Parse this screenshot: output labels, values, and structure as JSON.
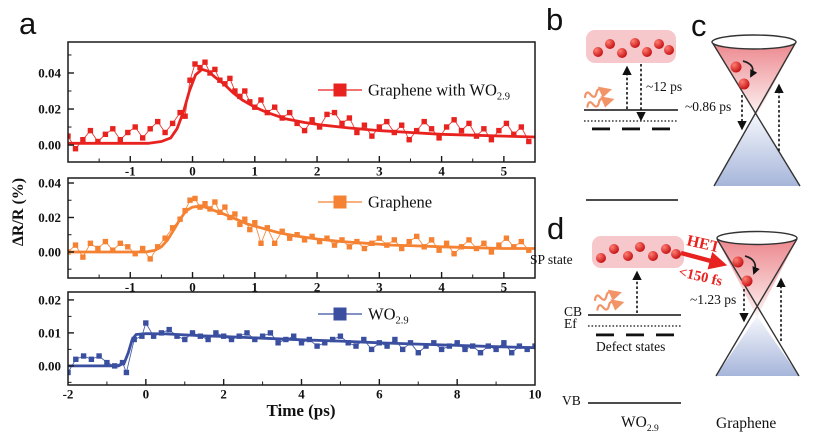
{
  "ui": {
    "panel_a": "a",
    "panel_b": "b",
    "panel_c": "c",
    "panel_d": "d",
    "xlabel": "Time (ps)",
    "ylabel": "ΔR/R (%)",
    "b": {
      "time": "~12 ps"
    },
    "c": {
      "time": "~0.86 ps"
    },
    "d": {
      "sp": "SP state",
      "cb": "CB",
      "ef": "Ef",
      "defect": "Defect states",
      "vb": "VB",
      "wo_main": "WO",
      "wo_sub": "2.9",
      "graphene": "Graphene",
      "het": "HET",
      "het_time": "<150 fs",
      "time": "~1.23 ps"
    }
  },
  "colors": {
    "red_series": "#e8231f",
    "orange_series": "#f58233",
    "blue_series": "#3a4fa0",
    "pink_box": "#f6c8cb",
    "dot_light": "#ff7d72",
    "dot_dark": "#c40f12",
    "cone_red_top": "#ec878d",
    "cone_red_bottom": "#fdf3f3",
    "cone_blue_top": "#f5f7fc",
    "cone_blue_bottom": "#a6b5da",
    "photon": "#f29368",
    "het_red": "#e8231f"
  },
  "chart_data": {
    "type": "scatter",
    "title": "",
    "xlabel": "Time (ps)",
    "ylabel": "ΔR/R (%)",
    "panels": [
      {
        "legend_main": "Graphene with WO",
        "legend_sub": "2.9",
        "color": "#e8231f",
        "xlim": [
          -2,
          5.5
        ],
        "xticks": [
          -1,
          0,
          1,
          2,
          3,
          4,
          5
        ],
        "xminor": 0.5,
        "ylim": [
          -0.0094,
          0.0572
        ],
        "yticks": [
          0,
          0.02,
          0.04
        ],
        "yminor": 0.01,
        "fit": [
          [
            -2,
            0.001
          ],
          [
            -1.5,
            0.001
          ],
          [
            -1.0,
            0.001
          ],
          [
            -0.7,
            0.001
          ],
          [
            -0.5,
            0.002
          ],
          [
            -0.35,
            0.004
          ],
          [
            -0.25,
            0.009
          ],
          [
            -0.15,
            0.018
          ],
          [
            -0.05,
            0.03
          ],
          [
            0.05,
            0.039
          ],
          [
            0.15,
            0.042
          ],
          [
            0.25,
            0.041
          ],
          [
            0.35,
            0.038
          ],
          [
            0.5,
            0.034
          ],
          [
            0.65,
            0.029
          ],
          [
            0.8,
            0.025
          ],
          [
            1.0,
            0.021
          ],
          [
            1.2,
            0.018
          ],
          [
            1.5,
            0.0145
          ],
          [
            1.8,
            0.0125
          ],
          [
            2.1,
            0.011
          ],
          [
            2.5,
            0.0095
          ],
          [
            3.0,
            0.008
          ],
          [
            3.5,
            0.007
          ],
          [
            4.0,
            0.006
          ],
          [
            4.5,
            0.0055
          ],
          [
            5.0,
            0.005
          ],
          [
            5.5,
            0.0045
          ]
        ],
        "scatter": [
          [
            -2,
            0.005
          ],
          [
            -1.88,
            -0.002
          ],
          [
            -1.76,
            0.003
          ],
          [
            -1.64,
            0.008
          ],
          [
            -1.52,
            0.002
          ],
          [
            -1.4,
            0.006
          ],
          [
            -1.28,
            0.009
          ],
          [
            -1.16,
            0.003
          ],
          [
            -1.04,
            0.007
          ],
          [
            -0.92,
            0.01
          ],
          [
            -0.8,
            0.004
          ],
          [
            -0.68,
            0.009
          ],
          [
            -0.56,
            0.013
          ],
          [
            -0.44,
            0.007
          ],
          [
            -0.32,
            0.012
          ],
          [
            -0.2,
            0.018
          ],
          [
            -0.12,
            0.016
          ],
          [
            -0.04,
            0.036
          ],
          [
            0.04,
            0.045
          ],
          [
            0.12,
            0.043
          ],
          [
            0.2,
            0.046
          ],
          [
            0.28,
            0.04
          ],
          [
            0.36,
            0.042
          ],
          [
            0.44,
            0.036
          ],
          [
            0.52,
            0.034
          ],
          [
            0.6,
            0.037
          ],
          [
            0.68,
            0.03
          ],
          [
            0.76,
            0.027
          ],
          [
            0.84,
            0.03
          ],
          [
            0.92,
            0.024
          ],
          [
            1,
            0.021
          ],
          [
            1.1,
            0.025
          ],
          [
            1.2,
            0.018
          ],
          [
            1.32,
            0.021
          ],
          [
            1.44,
            0.015
          ],
          [
            1.56,
            0.018
          ],
          [
            1.68,
            0.012
          ],
          [
            1.8,
            0.008
          ],
          [
            1.92,
            0.014
          ],
          [
            2.04,
            0.01
          ],
          [
            2.16,
            0.017
          ],
          [
            2.28,
            0.018
          ],
          [
            2.4,
            0.012
          ],
          [
            2.52,
            0.015
          ],
          [
            2.64,
            0.007
          ],
          [
            2.76,
            0.011
          ],
          [
            2.88,
            0.005
          ],
          [
            3,
            0.01
          ],
          [
            3.12,
            0.013
          ],
          [
            3.24,
            0.007
          ],
          [
            3.36,
            0.011
          ],
          [
            3.48,
            0.003
          ],
          [
            3.6,
            0.008
          ],
          [
            3.72,
            0.013
          ],
          [
            3.84,
            0.009
          ],
          [
            3.96,
            0.004
          ],
          [
            4.08,
            0.01
          ],
          [
            4.2,
            0.014
          ],
          [
            4.32,
            0.008
          ],
          [
            4.44,
            0.012
          ],
          [
            4.56,
            0.005
          ],
          [
            4.68,
            0.009
          ],
          [
            4.8,
            0.003
          ],
          [
            4.92,
            0.008
          ],
          [
            5.04,
            0.012
          ],
          [
            5.16,
            0.006
          ],
          [
            5.28,
            0.01
          ],
          [
            5.4,
            0.002
          ]
        ]
      },
      {
        "legend_main": "Graphene",
        "legend_sub": "",
        "color": "#f58233",
        "xlim": [
          -2,
          5.5
        ],
        "xticks": [
          -1,
          0,
          1,
          2,
          3,
          4,
          5
        ],
        "xminor": 0.5,
        "ylim": [
          -0.0151,
          0.0429
        ],
        "yticks": [
          0,
          0.02,
          0.04
        ],
        "yminor": 0.01,
        "fit": [
          [
            -2,
            0
          ],
          [
            -1.5,
            0
          ],
          [
            -1.0,
            0
          ],
          [
            -0.75,
            0
          ],
          [
            -0.6,
            0.001
          ],
          [
            -0.5,
            0.003
          ],
          [
            -0.4,
            0.007
          ],
          [
            -0.3,
            0.013
          ],
          [
            -0.2,
            0.019
          ],
          [
            -0.1,
            0.024
          ],
          [
            0,
            0.026
          ],
          [
            0.1,
            0.0265
          ],
          [
            0.2,
            0.026
          ],
          [
            0.35,
            0.024
          ],
          [
            0.5,
            0.022
          ],
          [
            0.7,
            0.019
          ],
          [
            0.9,
            0.016
          ],
          [
            1.1,
            0.014
          ],
          [
            1.4,
            0.011
          ],
          [
            1.7,
            0.009
          ],
          [
            2.0,
            0.0075
          ],
          [
            2.4,
            0.006
          ],
          [
            2.8,
            0.005
          ],
          [
            3.2,
            0.004
          ],
          [
            3.6,
            0.0035
          ],
          [
            4.0,
            0.003
          ],
          [
            4.5,
            0.0025
          ],
          [
            5.0,
            0.002
          ],
          [
            5.5,
            0.002
          ]
        ],
        "scatter": [
          [
            -2,
            0
          ],
          [
            -1.88,
            0.004
          ],
          [
            -1.76,
            -0.003
          ],
          [
            -1.64,
            0.005
          ],
          [
            -1.52,
            0.002
          ],
          [
            -1.4,
            0.006
          ],
          [
            -1.28,
            0.001
          ],
          [
            -1.16,
            0.005
          ],
          [
            -1.04,
            0.003
          ],
          [
            -0.92,
            -0.001
          ],
          [
            -0.8,
            0.002
          ],
          [
            -0.68,
            -0.004
          ],
          [
            -0.56,
            0.003
          ],
          [
            -0.44,
            0.008
          ],
          [
            -0.32,
            0.014
          ],
          [
            -0.2,
            0.019
          ],
          [
            -0.12,
            0.024
          ],
          [
            -0.04,
            0.03
          ],
          [
            0.04,
            0.031
          ],
          [
            0.12,
            0.026
          ],
          [
            0.2,
            0.028
          ],
          [
            0.28,
            0.025
          ],
          [
            0.36,
            0.029
          ],
          [
            0.44,
            0.023
          ],
          [
            0.52,
            0.026
          ],
          [
            0.6,
            0.02
          ],
          [
            0.68,
            0.022
          ],
          [
            0.76,
            0.016
          ],
          [
            0.84,
            0.019
          ],
          [
            0.92,
            0.013
          ],
          [
            1,
            0.017
          ],
          [
            1.1,
            0.005
          ],
          [
            1.2,
            0.014
          ],
          [
            1.32,
            0.005
          ],
          [
            1.44,
            0.012
          ],
          [
            1.56,
            0.008
          ],
          [
            1.68,
            0.01
          ],
          [
            1.8,
            0.007
          ],
          [
            1.92,
            0.009
          ],
          [
            2.04,
            0.006
          ],
          [
            2.16,
            0.008
          ],
          [
            2.28,
            0.004
          ],
          [
            2.4,
            0.007
          ],
          [
            2.52,
            0.003
          ],
          [
            2.64,
            0.006
          ],
          [
            2.76,
            0.002
          ],
          [
            2.88,
            0.005
          ],
          [
            3,
            0.008
          ],
          [
            3.12,
            0.004
          ],
          [
            3.24,
            0.007
          ],
          [
            3.36,
            0.002
          ],
          [
            3.48,
            0.006
          ],
          [
            3.6,
            0.009
          ],
          [
            3.72,
            0.003
          ],
          [
            3.84,
            0.007
          ],
          [
            3.96,
            0.001
          ],
          [
            4.08,
            0.005
          ],
          [
            4.2,
            -0.001
          ],
          [
            4.32,
            0.003
          ],
          [
            4.44,
            0.007
          ],
          [
            4.56,
            0.002
          ],
          [
            4.68,
            0.005
          ],
          [
            4.8,
            0
          ],
          [
            4.92,
            0.004
          ],
          [
            5.04,
            0.008
          ],
          [
            5.16,
            0.003
          ],
          [
            5.28,
            0.006
          ],
          [
            5.4,
            0.001
          ]
        ]
      },
      {
        "legend_main": "WO",
        "legend_sub": "2.9",
        "color": "#3a4fa0",
        "xlim": [
          -2,
          10
        ],
        "xticks": [
          -2,
          0,
          2,
          4,
          6,
          8,
          10
        ],
        "xminor": 1,
        "ylim": [
          -0.0058,
          0.0224
        ],
        "yticks": [
          0,
          0.01,
          0.02
        ],
        "yminor": 0.005,
        "fit": [
          [
            -2,
            0
          ],
          [
            -1.0,
            0
          ],
          [
            -0.7,
            0
          ],
          [
            -0.55,
            0.001
          ],
          [
            -0.45,
            0.004
          ],
          [
            -0.35,
            0.008
          ],
          [
            -0.25,
            0.0095
          ],
          [
            0,
            0.0098
          ],
          [
            0.5,
            0.0097
          ],
          [
            1,
            0.0094
          ],
          [
            1.5,
            0.0091
          ],
          [
            2,
            0.0089
          ],
          [
            3,
            0.0084
          ],
          [
            4,
            0.0079
          ],
          [
            5,
            0.0075
          ],
          [
            6,
            0.007
          ],
          [
            7,
            0.0066
          ],
          [
            8,
            0.0062
          ],
          [
            9,
            0.0058
          ],
          [
            10,
            0.0055
          ]
        ],
        "scatter": [
          [
            -2,
            -0.002
          ],
          [
            -1.8,
            0.002
          ],
          [
            -1.6,
            0.003
          ],
          [
            -1.4,
            0.002
          ],
          [
            -1.2,
            0.003
          ],
          [
            -1,
            0.001
          ],
          [
            -0.8,
            0
          ],
          [
            -0.6,
            0.001
          ],
          [
            -0.5,
            -0.002
          ],
          [
            -0.3,
            0.008
          ],
          [
            -0.1,
            0.009
          ],
          [
            0,
            0.013
          ],
          [
            0.2,
            0.009
          ],
          [
            0.4,
            0.01
          ],
          [
            0.6,
            0.011
          ],
          [
            0.8,
            0.009
          ],
          [
            1,
            0.008
          ],
          [
            1.2,
            0.01
          ],
          [
            1.4,
            0.009
          ],
          [
            1.6,
            0.008
          ],
          [
            1.8,
            0.01
          ],
          [
            2,
            0.009
          ],
          [
            2.2,
            0.008
          ],
          [
            2.4,
            0.009
          ],
          [
            2.6,
            0.01
          ],
          [
            2.8,
            0.008
          ],
          [
            3,
            0.009
          ],
          [
            3.2,
            0.01
          ],
          [
            3.4,
            0.007
          ],
          [
            3.6,
            0.008
          ],
          [
            3.8,
            0.009
          ],
          [
            4,
            0.007
          ],
          [
            4.2,
            0.008
          ],
          [
            4.4,
            0.006
          ],
          [
            4.6,
            0.007
          ],
          [
            4.8,
            0.008
          ],
          [
            5,
            0.009
          ],
          [
            5.2,
            0.007
          ],
          [
            5.4,
            0.006
          ],
          [
            5.6,
            0.008
          ],
          [
            5.8,
            0.005
          ],
          [
            6,
            0.007
          ],
          [
            6.2,
            0.006
          ],
          [
            6.4,
            0.008
          ],
          [
            6.6,
            0.005
          ],
          [
            6.8,
            0.007
          ],
          [
            7,
            0.004
          ],
          [
            7.2,
            0.006
          ],
          [
            7.4,
            0.007
          ],
          [
            7.6,
            0.005
          ],
          [
            7.8,
            0.006
          ],
          [
            8,
            0.007
          ],
          [
            8.2,
            0.005
          ],
          [
            8.4,
            0.006
          ],
          [
            8.6,
            0.004
          ],
          [
            8.8,
            0.006
          ],
          [
            9,
            0.005
          ],
          [
            9.2,
            0.007
          ],
          [
            9.4,
            0.004
          ],
          [
            9.6,
            0.006
          ],
          [
            9.8,
            0.005
          ],
          [
            10,
            0.006
          ]
        ]
      }
    ]
  }
}
